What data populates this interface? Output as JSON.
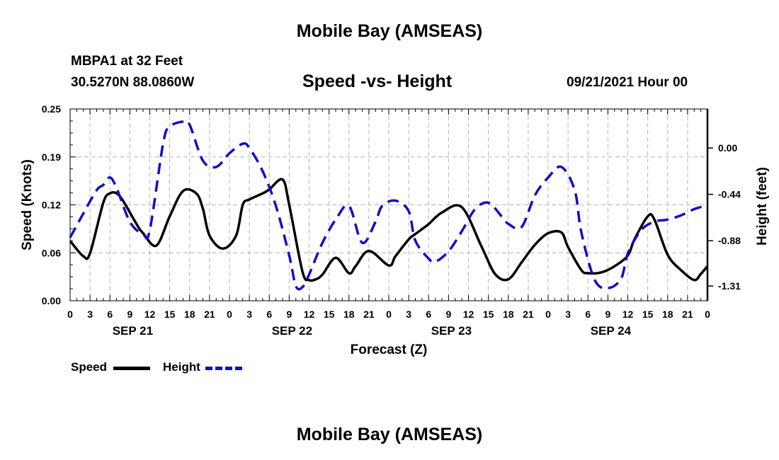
{
  "page_title": "Mobile Bay (AMSEAS)",
  "station": "MBPA1 at 32 Feet",
  "coordinates": "30.5270N  88.0860W",
  "subtitle": "Speed -vs- Height",
  "datetime": "09/21/2021 Hour 00",
  "footer_title": "Mobile Bay (AMSEAS)",
  "colors": {
    "speed": "#000000",
    "height": "#1010c8",
    "grid": "#b4b4b4"
  },
  "chart_data": {
    "type": "line",
    "title": "Speed -vs- Height",
    "xlabel": "Forecast (Z)",
    "ylabel": "Speed (Knots)",
    "y2label": "Height (feet)",
    "grid": true,
    "legend_placement": "bottom-left",
    "xlim": [
      0,
      96
    ],
    "ylim": [
      0,
      0.25
    ],
    "y2lim": [
      -1.45,
      0.37
    ],
    "x_tick_labels": [
      "0",
      "3",
      "6",
      "9",
      "12",
      "15",
      "18",
      "21",
      "0",
      "3",
      "6",
      "9",
      "12",
      "15",
      "18",
      "21",
      "0",
      "3",
      "6",
      "9",
      "12",
      "15",
      "18",
      "21",
      "0",
      "3",
      "6",
      "9",
      "12",
      "15",
      "18",
      "21",
      "0"
    ],
    "date_labels": [
      {
        "label": "SEP 21",
        "x": 9
      },
      {
        "label": "SEP 22",
        "x": 33
      },
      {
        "label": "SEP 23",
        "x": 57
      },
      {
        "label": "SEP 24",
        "x": 81
      }
    ],
    "y_ticks": [
      "0.00",
      "0.06",
      "0.12",
      "0.19",
      "0.25"
    ],
    "y_tick_values": [
      0,
      0.0625,
      0.125,
      0.1875,
      0.25
    ],
    "y2_ticks": [
      "0.00",
      "-0.44",
      "-0.88",
      "-1.31"
    ],
    "y2_tick_values": [
      0,
      -0.44,
      -0.88,
      -1.31
    ],
    "series": [
      {
        "name": "Speed",
        "axis": "left",
        "style": "solid",
        "x": [
          0,
          2,
          3,
          5,
          6,
          7,
          8,
          10,
          11,
          13,
          15,
          17,
          19,
          20,
          21,
          23,
          25,
          26,
          27,
          29,
          30,
          32,
          33,
          35,
          36,
          37,
          38,
          40,
          42,
          43,
          45,
          48,
          49,
          51,
          52,
          54,
          56,
          59,
          62,
          64,
          66,
          68,
          70,
          72,
          74,
          75,
          77,
          78,
          80,
          82,
          84,
          85,
          87,
          88,
          90,
          92,
          94,
          95,
          96
        ],
        "values": [
          0.078,
          0.058,
          0.062,
          0.128,
          0.14,
          0.14,
          0.13,
          0.1,
          0.088,
          0.072,
          0.11,
          0.143,
          0.14,
          0.12,
          0.085,
          0.068,
          0.085,
          0.125,
          0.132,
          0.14,
          0.145,
          0.158,
          0.125,
          0.038,
          0.027,
          0.028,
          0.034,
          0.056,
          0.036,
          0.045,
          0.065,
          0.046,
          0.058,
          0.08,
          0.087,
          0.1,
          0.115,
          0.122,
          0.07,
          0.035,
          0.028,
          0.05,
          0.073,
          0.088,
          0.089,
          0.07,
          0.04,
          0.036,
          0.037,
          0.045,
          0.059,
          0.08,
          0.11,
          0.106,
          0.06,
          0.04,
          0.027,
          0.035,
          0.045
        ]
      },
      {
        "name": "Height",
        "axis": "right",
        "style": "dashed",
        "x": [
          0,
          2,
          4,
          5,
          6,
          7,
          9,
          11,
          12,
          14,
          15,
          17,
          18,
          20,
          22,
          24,
          26,
          27,
          29,
          31,
          33,
          34,
          35,
          36,
          38,
          40,
          42,
          44,
          46,
          47,
          49,
          51,
          52,
          54,
          55,
          57,
          59,
          61,
          63,
          65,
          66,
          68,
          70,
          72,
          74,
          76,
          77,
          79,
          81,
          83,
          84,
          86,
          88,
          90,
          92,
          94,
          95,
          96
        ],
        "values": [
          -0.85,
          -0.62,
          -0.4,
          -0.35,
          -0.28,
          -0.38,
          -0.7,
          -0.82,
          -0.78,
          0.04,
          0.2,
          0.25,
          0.22,
          -0.12,
          -0.18,
          -0.05,
          0.04,
          0.0,
          -0.22,
          -0.55,
          -1.02,
          -1.31,
          -1.32,
          -1.2,
          -0.9,
          -0.68,
          -0.55,
          -0.9,
          -0.7,
          -0.55,
          -0.5,
          -0.6,
          -0.88,
          -1.05,
          -1.08,
          -0.98,
          -0.79,
          -0.58,
          -0.52,
          -0.65,
          -0.72,
          -0.75,
          -0.45,
          -0.28,
          -0.18,
          -0.4,
          -0.8,
          -1.25,
          -1.33,
          -1.24,
          -1.0,
          -0.78,
          -0.7,
          -0.68,
          -0.64,
          -0.58,
          -0.56,
          -0.54
        ]
      }
    ]
  },
  "legend": {
    "speed_label": "Speed",
    "height_label": "Height"
  }
}
